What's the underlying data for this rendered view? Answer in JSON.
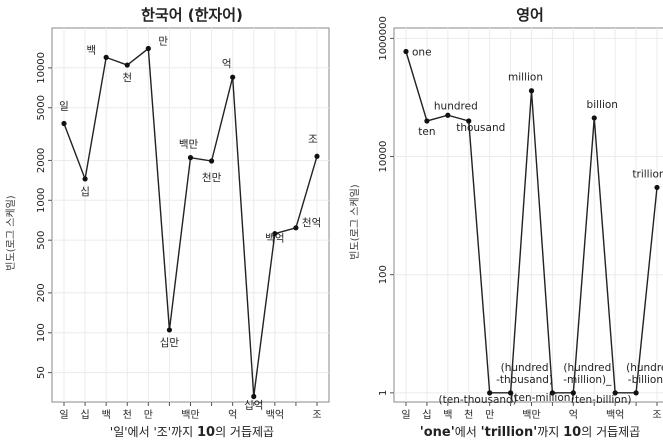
{
  "chart_data": [
    {
      "type": "line",
      "title": "한국어 (한자어)",
      "xlabel_parts": [
        "'일'에서 '조'까지 ",
        "10",
        "의 거듭제곱"
      ],
      "ylabel": "빈도(로그 스케일)",
      "yscale": "log",
      "ylim": [
        30,
        20000
      ],
      "yticks": [
        50,
        100,
        200,
        500,
        1000,
        2000,
        5000,
        10000
      ],
      "ytick_labels": [
        "50",
        "100",
        "200",
        "500",
        "1000",
        "2000",
        "5000",
        "10000"
      ],
      "grid": true,
      "categories": [
        "일",
        "십",
        "백",
        "천",
        "만",
        "십만",
        "백만",
        "천만",
        "억",
        "십억",
        "백억",
        "천억",
        "조"
      ],
      "xtick_labels": [
        "일",
        "십",
        "백",
        "천",
        "만",
        "",
        "백만",
        "",
        "억",
        "",
        "백억",
        "",
        "조"
      ],
      "values": [
        3800,
        1450,
        12000,
        10500,
        14000,
        105,
        2100,
        1980,
        8500,
        33,
        560,
        620,
        2150
      ],
      "point_labels": [
        "일",
        "십",
        "백",
        "천",
        "만",
        "십만",
        "백만",
        "천만",
        "억",
        "십억",
        "백억",
        "천억",
        "조"
      ]
    },
    {
      "type": "line",
      "title": "영어",
      "xlabel_parts": [
        "'one'",
        "에서 ",
        "'trillion'",
        "까지 ",
        "10",
        "의 거듭제곱"
      ],
      "ylabel": "빈도(로그 스케일)",
      "yscale": "log",
      "ylim": [
        0.7,
        1500000
      ],
      "yticks": [
        1,
        100,
        10000,
        1000000
      ],
      "ytick_labels": [
        "1",
        "100",
        "10000",
        "1000000"
      ],
      "grid": true,
      "categories": [
        "one",
        "ten",
        "hundred",
        "thousand",
        "(ten-thousand)",
        "(hundred-thousand)",
        "million",
        "(ten-million)",
        "(hundred-million)",
        "billion",
        "(ten-billion)",
        "(hundred-billion)",
        "trillion"
      ],
      "xtick_labels": [
        "일",
        "십",
        "백",
        "천",
        "만",
        "",
        "백만",
        "",
        "억",
        "",
        "백억",
        "",
        "조"
      ],
      "values": [
        600000,
        40000,
        50000,
        40000,
        1,
        1,
        130000,
        1,
        1,
        45000,
        1,
        1,
        3000
      ],
      "point_labels": [
        "one",
        "ten",
        "hundred",
        "thousand",
        "(ten-thousand)",
        "(hundred\n-thousand)",
        "million",
        "(ten-million)",
        "(hundred\n-million)_",
        "billion",
        "(ten-billion)",
        "(hundred\n-billion)_",
        "trillion"
      ]
    }
  ]
}
